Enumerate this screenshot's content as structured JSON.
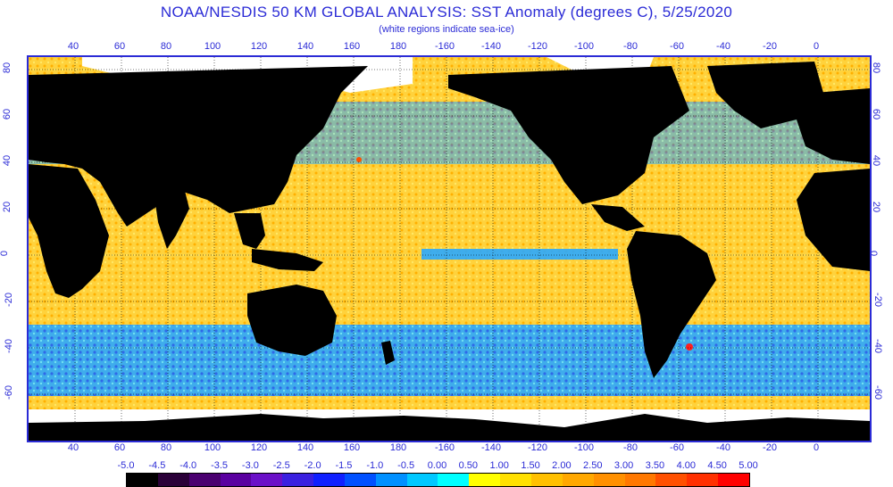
{
  "title": "NOAA/NESDIS 50 KM GLOBAL ANALYSIS: SST Anomaly (degrees C), 5/25/2020",
  "subtitle": "(white regions indicate sea-ice)",
  "lon_ticks": [
    "40",
    "60",
    "80",
    "100",
    "120",
    "140",
    "160",
    "180",
    "-160",
    "-140",
    "-120",
    "-100",
    "-80",
    "-60",
    "-40",
    "-20",
    "0"
  ],
  "lat_ticks": [
    "80",
    "60",
    "40",
    "20",
    "0",
    "-20",
    "-40",
    "-60"
  ],
  "legend": {
    "labels": [
      "-5.0",
      "-4.5",
      "-4.0",
      "-3.5",
      "-3.0",
      "-2.5",
      "-2.0",
      "-1.5",
      "-1.0",
      "-0.5",
      "0.00",
      "0.50",
      "1.00",
      "1.50",
      "2.00",
      "2.50",
      "3.00",
      "3.50",
      "4.00",
      "4.50",
      "5.00"
    ],
    "colors": [
      "#000000",
      "#2a0038",
      "#4a0070",
      "#5a00a0",
      "#6a10c8",
      "#3a20e0",
      "#1020ff",
      "#0050ff",
      "#0090ff",
      "#00c8ff",
      "#00ffff",
      "#ffff00",
      "#ffe000",
      "#ffc000",
      "#ffa800",
      "#ff9000",
      "#ff7800",
      "#ff5000",
      "#ff3000",
      "#ff0000"
    ]
  },
  "colors": {
    "frame": "#2b2bd6",
    "land": "#000000",
    "ice": "#ffffff",
    "ocean_warm": "#ffd23c",
    "ocean_cool": "#2aa8ff"
  }
}
